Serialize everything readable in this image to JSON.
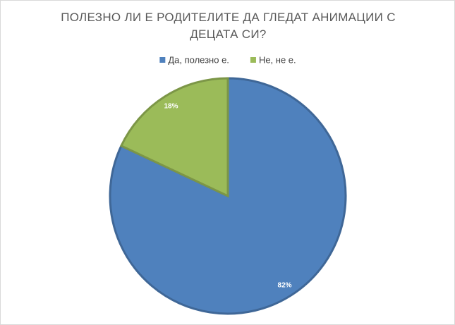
{
  "chart_data": {
    "type": "pie",
    "title": "ПОЛЕЗНО ЛИ Е РОДИТЕЛИТЕ ДА ГЛЕДАТ АНИМАЦИИ С ДЕЦАТА СИ?",
    "categories": [
      "Да, полезно е.",
      "Не, не е."
    ],
    "values": [
      82,
      18
    ],
    "value_labels": [
      "82%",
      "18%"
    ],
    "colors": [
      "#4f81bd",
      "#9bbb59"
    ],
    "legend": "top"
  }
}
